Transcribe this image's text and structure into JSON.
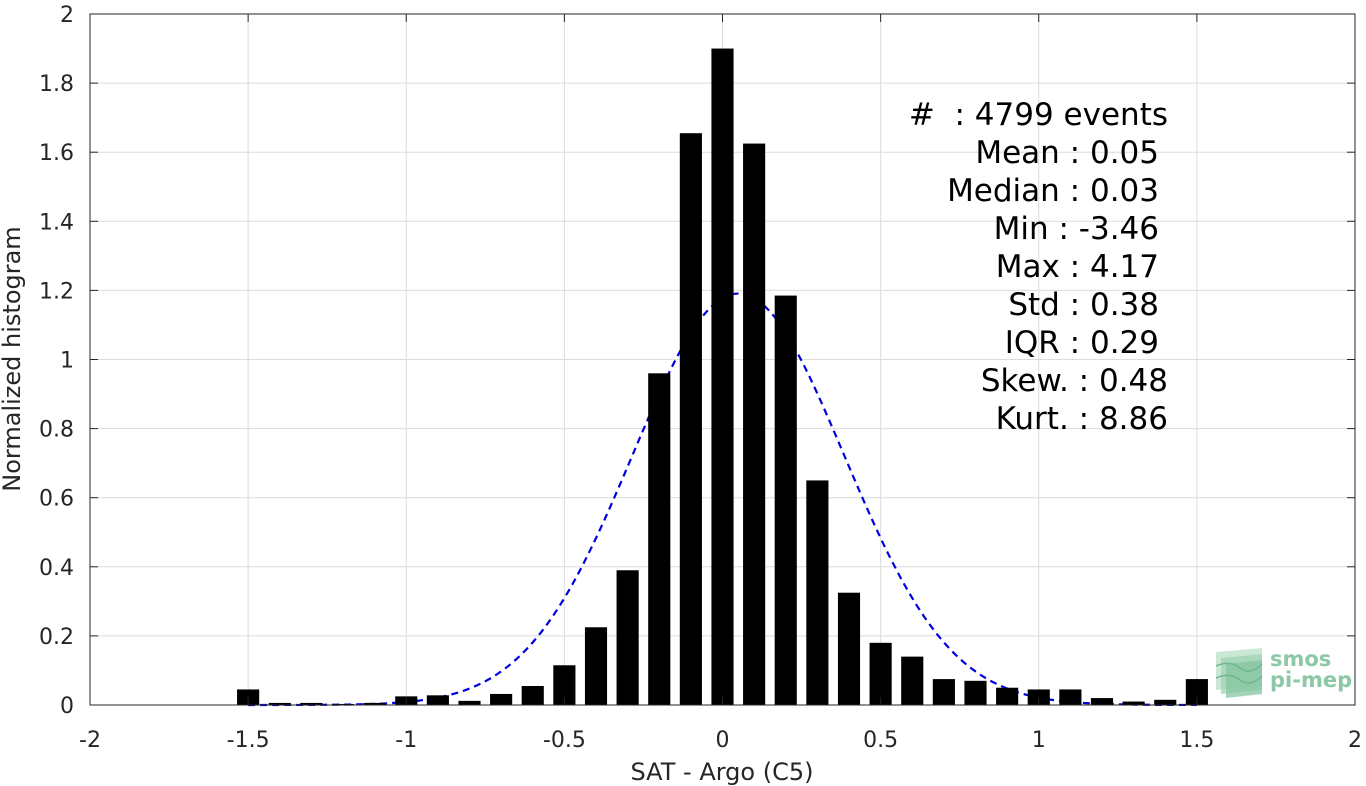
{
  "chart_data": {
    "type": "bar",
    "xlabel": "SAT - Argo (C5)",
    "ylabel": "Normalized histogram",
    "xlim": [
      -2,
      2
    ],
    "ylim": [
      0,
      2
    ],
    "x_ticks": [
      "-2",
      "-1.5",
      "-1",
      "-0.5",
      "0",
      "0.5",
      "1",
      "1.5",
      "2"
    ],
    "y_ticks": [
      "0",
      "0.2",
      "0.4",
      "0.6",
      "0.8",
      "1",
      "1.2",
      "1.4",
      "1.6",
      "1.8",
      "2"
    ],
    "grid": true,
    "bar_color": "#000000",
    "bins": [
      {
        "x": -1.5,
        "y": 0.045
      },
      {
        "x": -1.4,
        "y": 0.006
      },
      {
        "x": -1.3,
        "y": 0.006
      },
      {
        "x": -1.2,
        "y": 0.003
      },
      {
        "x": -1.1,
        "y": 0.006
      },
      {
        "x": -1.0,
        "y": 0.025
      },
      {
        "x": -0.9,
        "y": 0.028
      },
      {
        "x": -0.8,
        "y": 0.012
      },
      {
        "x": -0.7,
        "y": 0.032
      },
      {
        "x": -0.6,
        "y": 0.055
      },
      {
        "x": -0.5,
        "y": 0.115
      },
      {
        "x": -0.4,
        "y": 0.225
      },
      {
        "x": -0.3,
        "y": 0.39
      },
      {
        "x": -0.2,
        "y": 0.96
      },
      {
        "x": -0.1,
        "y": 1.655
      },
      {
        "x": 0.0,
        "y": 1.9
      },
      {
        "x": 0.1,
        "y": 1.625
      },
      {
        "x": 0.2,
        "y": 1.185
      },
      {
        "x": 0.3,
        "y": 0.65
      },
      {
        "x": 0.4,
        "y": 0.325
      },
      {
        "x": 0.5,
        "y": 0.18
      },
      {
        "x": 0.6,
        "y": 0.14
      },
      {
        "x": 0.7,
        "y": 0.075
      },
      {
        "x": 0.8,
        "y": 0.07
      },
      {
        "x": 0.9,
        "y": 0.05
      },
      {
        "x": 1.0,
        "y": 0.045
      },
      {
        "x": 1.1,
        "y": 0.045
      },
      {
        "x": 1.2,
        "y": 0.02
      },
      {
        "x": 1.3,
        "y": 0.01
      },
      {
        "x": 1.4,
        "y": 0.015
      },
      {
        "x": 1.5,
        "y": 0.075
      }
    ],
    "bar_width": 0.07,
    "fit_curve": {
      "type": "normal",
      "mean": 0.05,
      "std": 0.335,
      "x_range": [
        -1.5,
        1.5
      ],
      "color": "#0000dd",
      "style": "dashed"
    },
    "stats_lines": [
      "#  : 4799 events",
      "Mean : 0.05",
      "Median : 0.03",
      "Min : -3.46",
      "Max : 4.17",
      "Std : 0.38",
      "IQR : 0.29",
      "Skew. : 0.48",
      "Kurt. : 8.86"
    ]
  },
  "logo": {
    "line1": "smos",
    "line2": "pi-mep",
    "color": "#8cc8a6"
  }
}
